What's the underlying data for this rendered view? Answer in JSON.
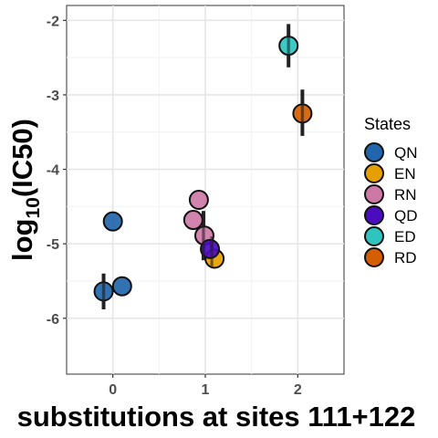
{
  "chart_data": {
    "type": "scatter",
    "title": "",
    "xlabel": "substitutions at sites 111+122",
    "ylabel_main": "log",
    "ylabel_sub": "10",
    "ylabel_rest": "(IC50)",
    "xlim": [
      -0.5,
      2.5
    ],
    "ylim": [
      -6.75,
      -1.8
    ],
    "x_ticks": [
      0,
      1,
      2
    ],
    "x_tick_labels": [
      "0",
      "1",
      "2"
    ],
    "y_ticks": [
      -6,
      -5,
      -4,
      -3,
      -2
    ],
    "y_tick_labels": [
      "-6",
      "-5",
      "-4",
      "-3",
      "-2"
    ],
    "grid": true,
    "legend_title": "States",
    "legend_position": "right",
    "error_bars": [
      {
        "x": -0.1,
        "ymin": -5.88,
        "ymax": -5.4
      },
      {
        "x": 0.98,
        "ymin": -5.22,
        "ymax": -4.56
      },
      {
        "x": 1.07,
        "ymin": -5.32,
        "ymax": -4.9
      },
      {
        "x": 1.9,
        "ymin": -2.63,
        "ymax": -2.05
      },
      {
        "x": 2.05,
        "ymin": -3.55,
        "ymax": -2.93
      }
    ],
    "series": [
      {
        "name": "QN",
        "color": "#2166ac",
        "points": [
          {
            "x": -0.1,
            "y": -5.64
          },
          {
            "x": 0.1,
            "y": -5.57
          },
          {
            "x": 0.0,
            "y": -4.7
          }
        ]
      },
      {
        "name": "EN",
        "color": "#e69f00",
        "points": [
          {
            "x": 1.1,
            "y": -5.2
          }
        ]
      },
      {
        "name": "RN",
        "color": "#cc79a7",
        "points": [
          {
            "x": 0.87,
            "y": -4.68
          },
          {
            "x": 0.93,
            "y": -4.41
          },
          {
            "x": 0.99,
            "y": -4.89
          }
        ]
      },
      {
        "name": "QD",
        "color": "#4b0bbf",
        "points": [
          {
            "x": 1.05,
            "y": -5.07
          }
        ]
      },
      {
        "name": "ED",
        "color": "#2ec4c0",
        "points": [
          {
            "x": 1.9,
            "y": -2.34
          }
        ]
      },
      {
        "name": "RD",
        "color": "#d55e00",
        "points": [
          {
            "x": 2.05,
            "y": -3.25
          }
        ]
      }
    ]
  }
}
